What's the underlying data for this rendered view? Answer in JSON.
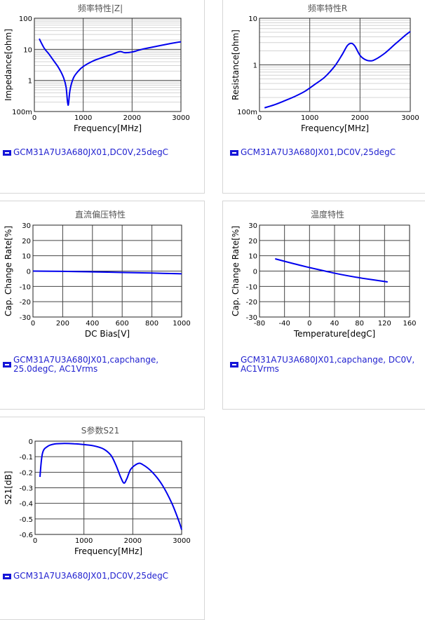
{
  "charts": [
    {
      "panel_title": "频率特性|Z|",
      "legend": "GCM31A7U3A680JX01,DC0V,25degC",
      "chart_data": {
        "type": "line",
        "title": "频率特性|Z|",
        "xlabel": "Frequency[MHz]",
        "ylabel": "Impedance[ohm]",
        "xlim": [
          0,
          3000
        ],
        "ylim": [
          0.1,
          100
        ],
        "yscale": "log",
        "grid": true,
        "x_ticks": [
          0,
          1000,
          2000,
          3000
        ],
        "x_tick_labels": [
          "0",
          "1000",
          "2000",
          "3000"
        ],
        "y_ticks": [
          0.1,
          1,
          10,
          100
        ],
        "y_tick_labels": [
          "100m",
          "1",
          "10",
          "100"
        ],
        "series": [
          {
            "color": "#0000ee",
            "points": [
              [
                100,
                22
              ],
              [
                200,
                11
              ],
              [
                300,
                7
              ],
              [
                400,
                4.2
              ],
              [
                500,
                2.5
              ],
              [
                600,
                1.2
              ],
              [
                650,
                0.6
              ],
              [
                690,
                0.16
              ],
              [
                730,
                0.5
              ],
              [
                800,
                1.2
              ],
              [
                900,
                2
              ],
              [
                1000,
                2.8
              ],
              [
                1200,
                4.2
              ],
              [
                1400,
                5.5
              ],
              [
                1600,
                7
              ],
              [
                1750,
                8.5
              ],
              [
                1850,
                7.8
              ],
              [
                2000,
                8.2
              ],
              [
                2200,
                10
              ],
              [
                2500,
                12.5
              ],
              [
                2800,
                15.5
              ],
              [
                3000,
                17.5
              ]
            ]
          }
        ]
      }
    },
    {
      "panel_title": "频率特性R",
      "legend": "GCM31A7U3A680JX01,DC0V,25degC",
      "chart_data": {
        "type": "line",
        "title": "频率特性R",
        "xlabel": "Frequency[MHz]",
        "ylabel": "Resistance[ohm]",
        "xlim": [
          0,
          3000
        ],
        "ylim": [
          0.1,
          10
        ],
        "yscale": "log",
        "grid": true,
        "x_ticks": [
          0,
          1000,
          2000,
          3000
        ],
        "x_tick_labels": [
          "0",
          "1000",
          "2000",
          "3000"
        ],
        "y_ticks": [
          0.1,
          1,
          10
        ],
        "y_tick_labels": [
          "100m",
          "1",
          "10"
        ],
        "series": [
          {
            "color": "#0000ee",
            "points": [
              [
                100,
                0.12
              ],
              [
                300,
                0.14
              ],
              [
                500,
                0.17
              ],
              [
                700,
                0.21
              ],
              [
                900,
                0.27
              ],
              [
                1100,
                0.38
              ],
              [
                1300,
                0.55
              ],
              [
                1500,
                0.95
              ],
              [
                1650,
                1.7
              ],
              [
                1750,
                2.6
              ],
              [
                1830,
                2.9
              ],
              [
                1900,
                2.5
              ],
              [
                2000,
                1.6
              ],
              [
                2100,
                1.3
              ],
              [
                2200,
                1.22
              ],
              [
                2300,
                1.3
              ],
              [
                2500,
                1.8
              ],
              [
                2700,
                2.8
              ],
              [
                2900,
                4.3
              ],
              [
                3000,
                5.2
              ]
            ]
          }
        ]
      }
    },
    {
      "panel_title": "直流偏压特性",
      "legend": "GCM31A7U3A680JX01,capchange, 25.0degC, AC1Vrms",
      "chart_data": {
        "type": "line",
        "title": "直流偏压特性",
        "xlabel": "DC Bias[V]",
        "ylabel": "Cap. Change Rate[%]",
        "xlim": [
          0,
          1000
        ],
        "ylim": [
          -30,
          30
        ],
        "yscale": "linear",
        "grid": true,
        "x_ticks": [
          0,
          200,
          400,
          600,
          800,
          1000
        ],
        "x_tick_labels": [
          "0",
          "200",
          "400",
          "600",
          "800",
          "1000"
        ],
        "y_ticks": [
          -30,
          -20,
          -10,
          0,
          10,
          20,
          30
        ],
        "y_tick_labels": [
          "-30",
          "-20",
          "-10",
          "0",
          "10",
          "20",
          "30"
        ],
        "series": [
          {
            "color": "#0000ee",
            "points": [
              [
                0,
                0
              ],
              [
                200,
                -0.2
              ],
              [
                400,
                -0.5
              ],
              [
                600,
                -0.9
              ],
              [
                800,
                -1.3
              ],
              [
                1000,
                -1.8
              ]
            ]
          }
        ]
      }
    },
    {
      "panel_title": "温度特性",
      "legend": "GCM31A7U3A680JX01,capchange, DC0V, AC1Vrms",
      "chart_data": {
        "type": "line",
        "title": "温度特性",
        "xlabel": "Temperature[degC]",
        "ylabel": "Cap. Change Rate[%]",
        "xlim": [
          -80,
          160
        ],
        "ylim": [
          -30,
          30
        ],
        "yscale": "linear",
        "grid": true,
        "x_ticks": [
          -80,
          -40,
          0,
          40,
          80,
          120,
          160
        ],
        "x_tick_labels": [
          "-80",
          "-40",
          "0",
          "40",
          "80",
          "120",
          "160"
        ],
        "y_ticks": [
          -30,
          -20,
          -10,
          0,
          10,
          20,
          30
        ],
        "y_tick_labels": [
          "-30",
          "-20",
          "-10",
          "0",
          "10",
          "20",
          "30"
        ],
        "series": [
          {
            "color": "#0000ee",
            "points": [
              [
                -55,
                8
              ],
              [
                -25,
                4.8
              ],
              [
                0,
                2.3
              ],
              [
                25,
                0
              ],
              [
                50,
                -2.2
              ],
              [
                85,
                -4.7
              ],
              [
                125,
                -7.1
              ]
            ]
          }
        ]
      }
    },
    {
      "panel_title": "S参数S21",
      "legend": "GCM31A7U3A680JX01,DC0V,25degC",
      "chart_data": {
        "type": "line",
        "title": "S参数S21",
        "xlabel": "Frequency[MHz]",
        "ylabel": "S21[dB]",
        "xlim": [
          0,
          3000
        ],
        "ylim": [
          -0.6,
          0
        ],
        "yscale": "linear",
        "grid": true,
        "x_ticks": [
          0,
          1000,
          2000,
          3000
        ],
        "x_tick_labels": [
          "0",
          "1000",
          "2000",
          "3000"
        ],
        "y_ticks": [
          -0.6,
          -0.5,
          -0.4,
          -0.3,
          -0.2,
          -0.1,
          0
        ],
        "y_tick_labels": [
          "-0.6",
          "-0.5",
          "-0.4",
          "-0.3",
          "-0.2",
          "-0.1",
          "0"
        ],
        "series": [
          {
            "color": "#0000ee",
            "points": [
              [
                100,
                -0.23
              ],
              [
                150,
                -0.08
              ],
              [
                250,
                -0.035
              ],
              [
                400,
                -0.018
              ],
              [
                600,
                -0.015
              ],
              [
                800,
                -0.017
              ],
              [
                1000,
                -0.022
              ],
              [
                1200,
                -0.03
              ],
              [
                1400,
                -0.05
              ],
              [
                1550,
                -0.09
              ],
              [
                1650,
                -0.15
              ],
              [
                1750,
                -0.23
              ],
              [
                1820,
                -0.27
              ],
              [
                1880,
                -0.24
              ],
              [
                1960,
                -0.18
              ],
              [
                2100,
                -0.145
              ],
              [
                2200,
                -0.15
              ],
              [
                2400,
                -0.2
              ],
              [
                2600,
                -0.28
              ],
              [
                2800,
                -0.4
              ],
              [
                2950,
                -0.52
              ],
              [
                3000,
                -0.57
              ]
            ]
          }
        ]
      }
    }
  ]
}
